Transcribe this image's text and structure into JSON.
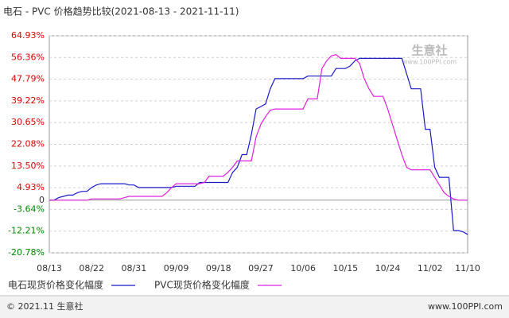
{
  "chart_data": {
    "type": "line",
    "title": "电石 - PVC 价格趋势比较(2021-08-13 - 2021-11-11)",
    "categories": [
      "08/13",
      null,
      null,
      null,
      null,
      null,
      null,
      null,
      null,
      "08/22",
      null,
      null,
      null,
      null,
      null,
      null,
      null,
      null,
      "08/31",
      null,
      null,
      null,
      null,
      null,
      null,
      null,
      null,
      "09/09",
      null,
      null,
      null,
      null,
      null,
      null,
      null,
      null,
      "09/18",
      null,
      null,
      null,
      null,
      null,
      null,
      null,
      null,
      "09/27",
      null,
      null,
      null,
      null,
      null,
      null,
      null,
      null,
      "10/06",
      null,
      null,
      null,
      null,
      null,
      null,
      null,
      null,
      "10/15",
      null,
      null,
      null,
      null,
      null,
      null,
      null,
      null,
      "10/24",
      null,
      null,
      null,
      null,
      null,
      null,
      null,
      null,
      "11/02",
      null,
      null,
      null,
      null,
      null,
      null,
      null,
      "11/10"
    ],
    "series": [
      {
        "name": "电石现货价格变化幅度",
        "color": "#1a1acc",
        "values": [
          0,
          0,
          1,
          1.5,
          2,
          2,
          3,
          3.5,
          3.5,
          5,
          6,
          6.5,
          6.5,
          6.5,
          6.5,
          6.5,
          6.5,
          6,
          6,
          5,
          5,
          5,
          5,
          5,
          5,
          5,
          5,
          5.5,
          5.5,
          5.5,
          5.5,
          5.5,
          7,
          7,
          7,
          7,
          7,
          7,
          7,
          11,
          13,
          18,
          18,
          26,
          36,
          37,
          38,
          44,
          48,
          48,
          48,
          48,
          48,
          48,
          48,
          49,
          49,
          49,
          49,
          49,
          49,
          52,
          52,
          52,
          53,
          55,
          56,
          56,
          56,
          56,
          56,
          56,
          56,
          56,
          56,
          56,
          50,
          44,
          44,
          44,
          28,
          28,
          13,
          9,
          9,
          9,
          -12,
          -12,
          -12.5,
          -13.5
        ]
      },
      {
        "name": "PVC现货价格变化幅度",
        "color": "#e020e0",
        "values": [
          0,
          0,
          0,
          0,
          0,
          0,
          0,
          0,
          0,
          0.5,
          0.5,
          0.5,
          0.5,
          0.5,
          0.5,
          0.5,
          1,
          1.5,
          1.5,
          1.5,
          1.5,
          1.5,
          1.5,
          1.5,
          1.5,
          3,
          5,
          6.5,
          6.5,
          6.5,
          6.5,
          6.5,
          6.5,
          7,
          9.5,
          9.5,
          9.5,
          9.5,
          11,
          13,
          15.5,
          15.5,
          15.5,
          15.5,
          25,
          30,
          33,
          35.5,
          36,
          36,
          36,
          36,
          36,
          36,
          36,
          40,
          40,
          40,
          52,
          55,
          57,
          57.5,
          56,
          56,
          56,
          56,
          54,
          48,
          44,
          41,
          41,
          41,
          36,
          30,
          24,
          18,
          13,
          12,
          12,
          12,
          12,
          12,
          9,
          6,
          3,
          1.5,
          0.5,
          0,
          0,
          0
        ]
      }
    ],
    "ylim": [
      -20.78,
      64.93
    ],
    "yticks": [
      {
        "value": 64.93,
        "label": "64.93%"
      },
      {
        "value": 56.36,
        "label": "56.36%"
      },
      {
        "value": 47.79,
        "label": "47.79%"
      },
      {
        "value": 39.22,
        "label": "39.22%"
      },
      {
        "value": 30.65,
        "label": "30.65%"
      },
      {
        "value": 22.08,
        "label": "22.08%"
      },
      {
        "value": 13.5,
        "label": "13.50%"
      },
      {
        "value": 4.93,
        "label": "4.93%"
      },
      0,
      {
        "value": -3.64,
        "label": "-3.64%"
      },
      {
        "value": -12.21,
        "label": "-12.21%"
      },
      {
        "value": -20.78,
        "label": "-20.78%"
      }
    ],
    "grid": true,
    "watermark": {
      "name": "生意社",
      "url": "www.100PPI.com"
    },
    "footer": {
      "left": "© 2021.11 生意社",
      "right": "www.100PPI.com"
    }
  }
}
